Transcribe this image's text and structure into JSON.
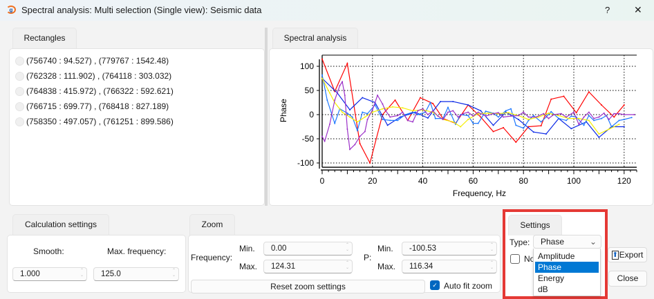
{
  "window": {
    "title": "Spectral analysis: Multi selection (Single view): Seismic data",
    "help": "?",
    "close": "✕"
  },
  "rectangles": {
    "tab": "Rectangles",
    "items": [
      "(756740 : 94.527) , (779767 : 1542.48)",
      "(762328 : 111.902) , (764118 : 303.032)",
      "(764838 : 415.972) , (766322 : 592.621)",
      "(766715 : 699.77) , (768418 : 827.189)",
      "(758350 : 497.057) , (761251 : 899.586)"
    ]
  },
  "spectral": {
    "tab": "Spectral analysis"
  },
  "calc": {
    "tab": "Calculation settings",
    "smooth_label": "Smooth:",
    "maxfreq_label": "Max. frequency:",
    "smooth": "1.000",
    "maxfreq": "125.0"
  },
  "zoom": {
    "tab": "Zoom",
    "frequency_label": "Frequency:",
    "p_label": "P:",
    "min_label": "Min.",
    "max_label": "Max.",
    "freq_min": "0.00",
    "freq_max": "124.31",
    "p_min": "-100.53",
    "p_max": "116.34",
    "reset": "Reset zoom settings",
    "autofit": "Auto fit zoom",
    "autofit_checked": true
  },
  "settings": {
    "tab": "Settings",
    "type_label": "Type:",
    "type_value": "Phase",
    "checkbox_label": "No",
    "options": [
      "Amplitude",
      "Phase",
      "Energy",
      "dB"
    ],
    "selected": "Phase",
    "highlight_color": "#0078d4",
    "border_color": "#e53935"
  },
  "buttons": {
    "export": "Export",
    "close": "Close"
  },
  "chart_data": {
    "type": "line",
    "xlabel": "Frequency, Hz",
    "ylabel": "Phase",
    "xlim": [
      0,
      125
    ],
    "ylim": [
      -106,
      123
    ],
    "grid": true,
    "xticks": [
      "0",
      "20",
      "40",
      "60",
      "80",
      "100",
      "120"
    ],
    "yticks": [
      "100",
      "50",
      "0",
      "-50",
      "-100"
    ],
    "series": [
      {
        "color": "#ff0000",
        "points": [
          [
            0,
            115
          ],
          [
            5,
            48
          ],
          [
            10,
            106
          ],
          [
            15,
            -60
          ],
          [
            19,
            -100
          ],
          [
            24,
            0
          ],
          [
            29,
            30
          ],
          [
            34,
            -12
          ],
          [
            39,
            35
          ],
          [
            44,
            23
          ],
          [
            48,
            -8
          ],
          [
            53,
            -18
          ],
          [
            58,
            20
          ],
          [
            63,
            -5
          ],
          [
            68,
            -35
          ],
          [
            72,
            -27
          ],
          [
            77,
            -57
          ],
          [
            82,
            -25
          ],
          [
            87,
            -23
          ],
          [
            91,
            32
          ],
          [
            96,
            38
          ],
          [
            101,
            4
          ],
          [
            106,
            47
          ],
          [
            111,
            20
          ],
          [
            116,
            -5
          ],
          [
            120,
            20
          ]
        ]
      },
      {
        "color": "#0a28e6",
        "points": [
          [
            0,
            75
          ],
          [
            6,
            45
          ],
          [
            11,
            10
          ],
          [
            16,
            35
          ],
          [
            21,
            25
          ],
          [
            26,
            -22
          ],
          [
            31,
            -5
          ],
          [
            37,
            5
          ],
          [
            42,
            -7
          ],
          [
            47,
            27
          ],
          [
            52,
            27
          ],
          [
            58,
            20
          ],
          [
            63,
            8
          ],
          [
            68,
            -22
          ],
          [
            73,
            5
          ],
          [
            78,
            -10
          ],
          [
            84,
            -36
          ],
          [
            89,
            -40
          ],
          [
            94,
            -8
          ],
          [
            99,
            -29
          ],
          [
            105,
            -15
          ],
          [
            110,
            -47
          ],
          [
            115,
            -25
          ],
          [
            120,
            -25
          ]
        ]
      },
      {
        "color": "#1e78ff",
        "points": [
          [
            0,
            82
          ],
          [
            2,
            30
          ],
          [
            5,
            -18
          ],
          [
            7,
            12
          ],
          [
            10,
            3
          ],
          [
            12,
            -5
          ],
          [
            14,
            -33
          ],
          [
            16,
            5
          ],
          [
            18,
            2
          ],
          [
            21,
            20
          ],
          [
            24,
            -10
          ],
          [
            27,
            -12
          ],
          [
            30,
            -12
          ],
          [
            33,
            0
          ],
          [
            36,
            5
          ],
          [
            38,
            0
          ],
          [
            41,
            5
          ],
          [
            43,
            25
          ],
          [
            45,
            -8
          ],
          [
            48,
            -8
          ],
          [
            50,
            15
          ],
          [
            53,
            -20
          ],
          [
            55,
            0
          ],
          [
            58,
            -2
          ],
          [
            60,
            -18
          ],
          [
            62,
            -18
          ],
          [
            65,
            7
          ],
          [
            68,
            3
          ],
          [
            70,
            -5
          ],
          [
            73,
            8
          ],
          [
            75,
            12
          ],
          [
            77,
            -22
          ],
          [
            80,
            -28
          ],
          [
            82,
            -12
          ],
          [
            84,
            -2
          ],
          [
            87,
            -15
          ],
          [
            89,
            -5
          ],
          [
            91,
            6
          ],
          [
            94,
            -8
          ],
          [
            97,
            -12
          ],
          [
            99,
            -3
          ],
          [
            101,
            -5
          ],
          [
            104,
            -22
          ],
          [
            106,
            -2
          ],
          [
            108,
            -12
          ],
          [
            111,
            -8
          ],
          [
            113,
            -2
          ],
          [
            115,
            -25
          ],
          [
            118,
            -12
          ],
          [
            120,
            -10
          ],
          [
            123,
            -6
          ]
        ]
      },
      {
        "color": "#f5ee00",
        "points": [
          [
            0,
            75
          ],
          [
            3,
            45
          ],
          [
            5,
            25
          ],
          [
            8,
            5
          ],
          [
            11,
            -5
          ],
          [
            14,
            -15
          ],
          [
            17,
            -5
          ],
          [
            20,
            5
          ],
          [
            24,
            12
          ],
          [
            28,
            16
          ],
          [
            32,
            14
          ],
          [
            36,
            8
          ],
          [
            40,
            10
          ],
          [
            44,
            5
          ],
          [
            48,
            -10
          ],
          [
            52,
            -15
          ],
          [
            55,
            -25
          ],
          [
            58,
            -10
          ],
          [
            62,
            2
          ],
          [
            66,
            3
          ],
          [
            70,
            2
          ],
          [
            74,
            4
          ],
          [
            78,
            -2
          ],
          [
            82,
            -10
          ],
          [
            86,
            -5
          ],
          [
            90,
            3
          ],
          [
            94,
            -2
          ],
          [
            98,
            -8
          ],
          [
            102,
            -8
          ],
          [
            106,
            -12
          ],
          [
            110,
            -40
          ],
          [
            114,
            -30
          ],
          [
            118,
            -20
          ]
        ]
      },
      {
        "color": "#9b30c8",
        "points": [
          [
            0,
            -45
          ],
          [
            1,
            -55
          ],
          [
            3,
            -20
          ],
          [
            5,
            30
          ],
          [
            7,
            60
          ],
          [
            8,
            68
          ],
          [
            9,
            40
          ],
          [
            10,
            -30
          ],
          [
            11,
            -72
          ],
          [
            13,
            -62
          ],
          [
            15,
            -45
          ],
          [
            17,
            -35
          ],
          [
            18,
            -10
          ],
          [
            20,
            10
          ],
          [
            22,
            40
          ],
          [
            24,
            22
          ],
          [
            25,
            10
          ],
          [
            27,
            -5
          ],
          [
            30,
            -2
          ],
          [
            32,
            5
          ],
          [
            34,
            -12
          ],
          [
            36,
            -15
          ],
          [
            38,
            8
          ],
          [
            40,
            12
          ],
          [
            42,
            0
          ],
          [
            44,
            8
          ],
          [
            46,
            -3
          ],
          [
            48,
            -10
          ],
          [
            50,
            5
          ],
          [
            52,
            8
          ],
          [
            54,
            -5
          ],
          [
            56,
            2
          ],
          [
            58,
            5
          ],
          [
            60,
            -3
          ],
          [
            62,
            5
          ],
          [
            65,
            -3
          ],
          [
            68,
            2
          ],
          [
            70,
            4
          ],
          [
            72,
            -5
          ],
          [
            75,
            -3
          ],
          [
            78,
            -2
          ],
          [
            80,
            5
          ],
          [
            82,
            -5
          ],
          [
            85,
            -5
          ],
          [
            88,
            2
          ],
          [
            90,
            -8
          ],
          [
            92,
            0
          ],
          [
            95,
            2
          ],
          [
            97,
            -5
          ],
          [
            100,
            5
          ],
          [
            102,
            -20
          ],
          [
            104,
            -5
          ],
          [
            106,
            5
          ],
          [
            108,
            -8
          ],
          [
            110,
            -5
          ],
          [
            112,
            3
          ],
          [
            114,
            -10
          ],
          [
            116,
            2
          ],
          [
            118,
            2
          ],
          [
            120,
            0
          ],
          [
            124,
            0
          ]
        ]
      }
    ]
  }
}
